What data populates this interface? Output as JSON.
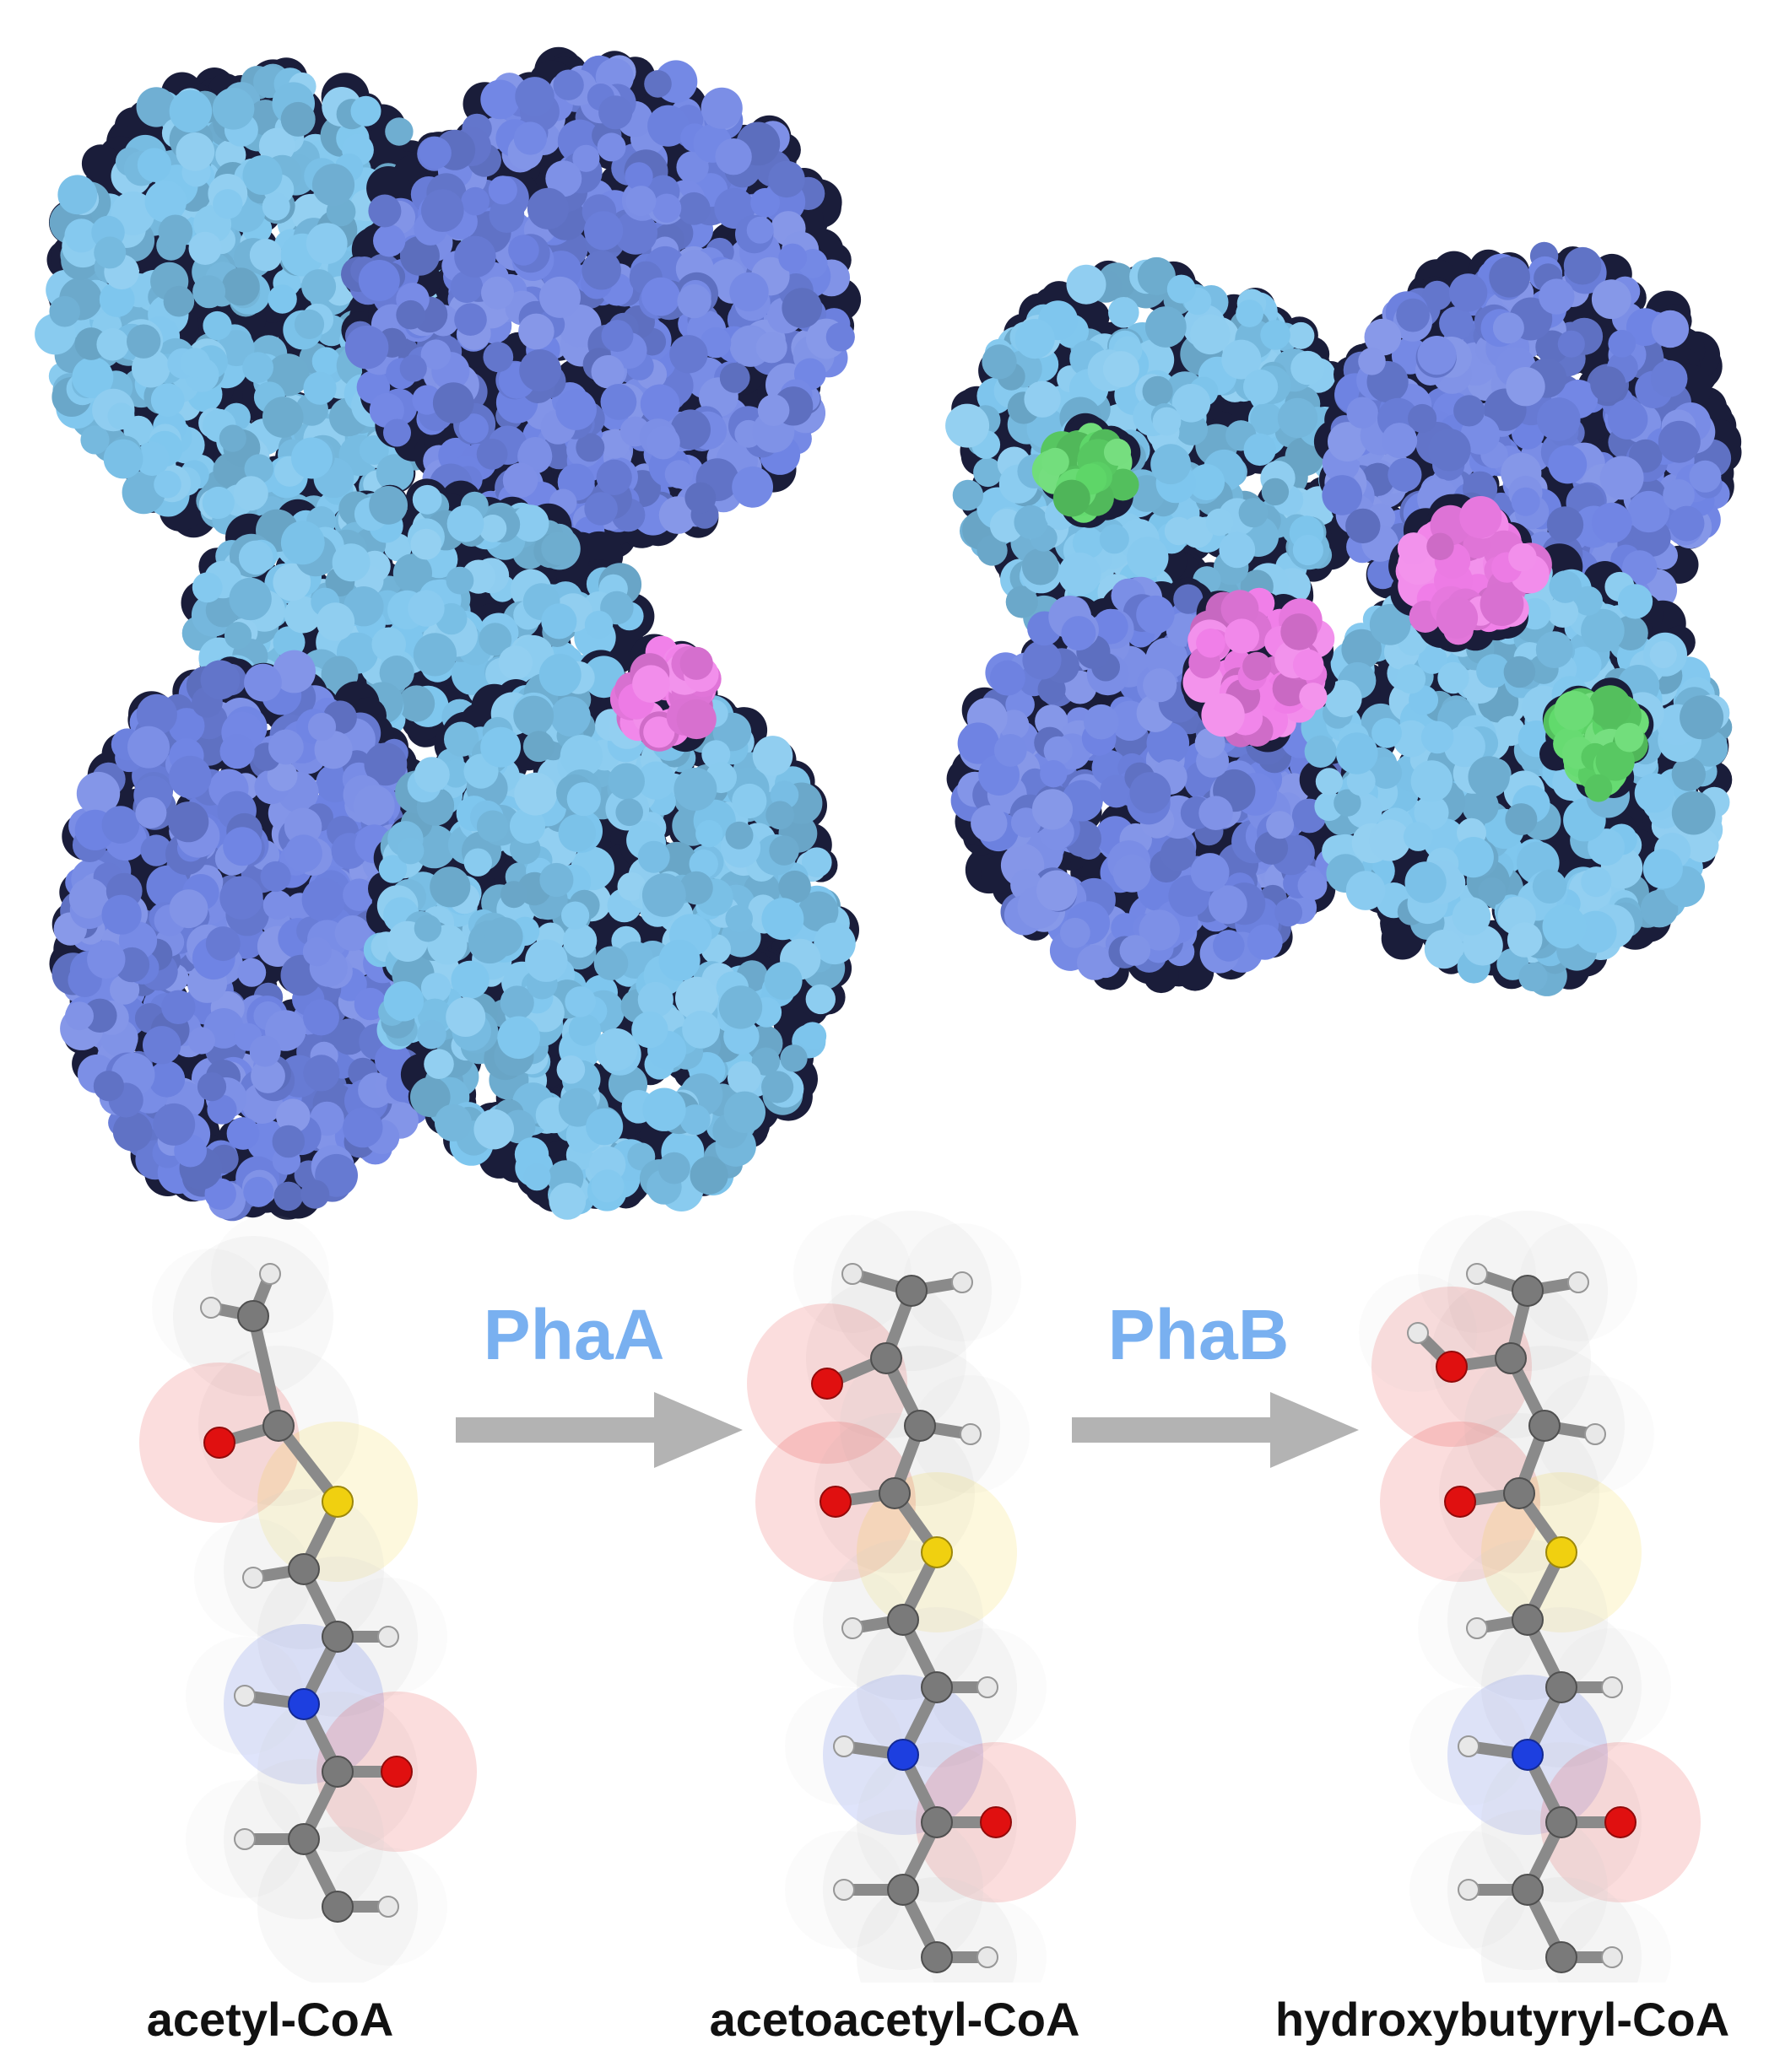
{
  "colors": {
    "chain_blue_dark": "#6f84e4",
    "chain_blue_light": "#7ec6ee",
    "ligand_pink": "#f07de8",
    "ligand_green": "#5fd96a",
    "label_blue": "#79b0f0",
    "arrow_gray": "#b3b3b3",
    "carbon": "#7a7a7a",
    "hydrogen": "#e8e8e8",
    "oxygen": "#e01010",
    "sulfur": "#f0d010",
    "nitrogen": "#1d3fe0"
  },
  "proteins": {
    "left": {
      "name": "protein-structure-left",
      "icon": "protein-surface-icon"
    },
    "right": {
      "name": "protein-structure-right",
      "icon": "protein-surface-icon"
    }
  },
  "reactions": [
    {
      "enzyme": "PhaA",
      "arrow_icon": "right-arrow-icon"
    },
    {
      "enzyme": "PhaB",
      "arrow_icon": "right-arrow-icon"
    }
  ],
  "molecules": [
    {
      "label": "acetyl-CoA"
    },
    {
      "label": "acetoacetyl-CoA"
    },
    {
      "label": "hydroxybutyryl-CoA"
    }
  ]
}
